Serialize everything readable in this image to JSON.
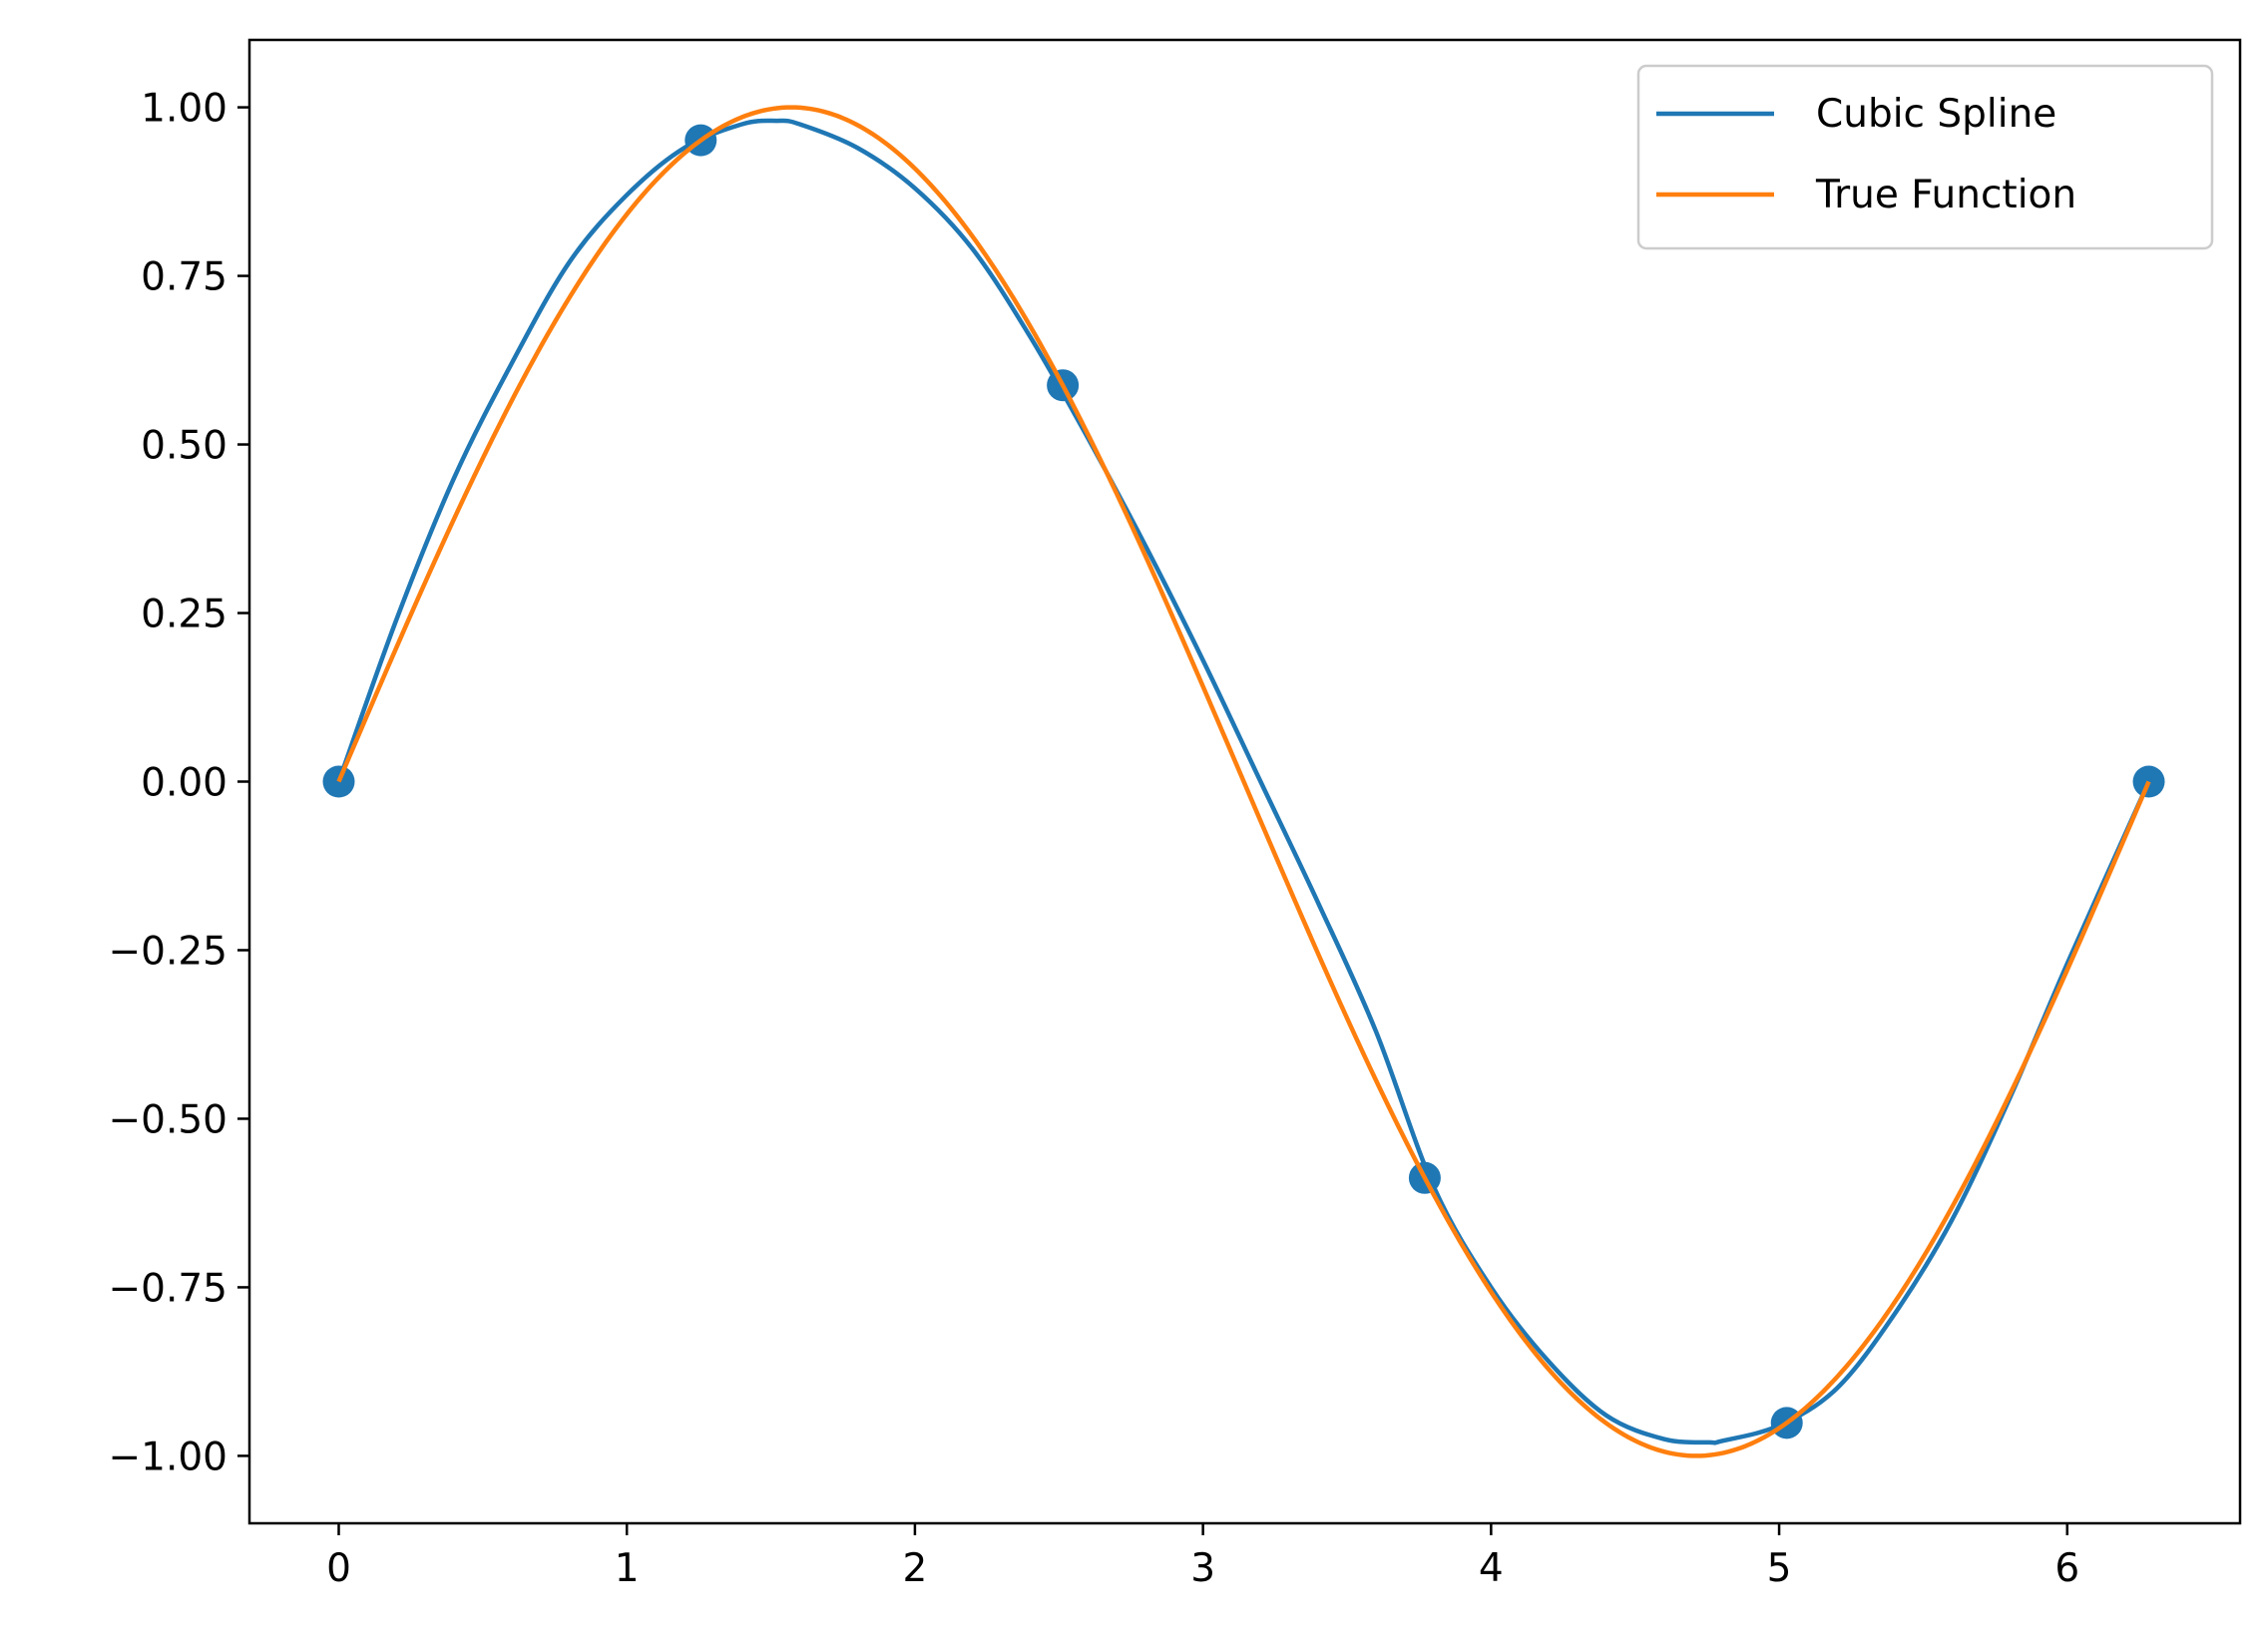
{
  "chart_data": {
    "type": "line",
    "xlim": [
      -0.31,
      6.6
    ],
    "ylim": [
      -1.1,
      1.1
    ],
    "xticks": [
      0,
      1,
      2,
      3,
      4,
      5,
      6
    ],
    "xtick_labels": [
      "0",
      "1",
      "2",
      "3",
      "4",
      "5",
      "6"
    ],
    "yticks": [
      1.0,
      0.75,
      0.5,
      0.25,
      0.0,
      -0.25,
      -0.5,
      -0.75,
      -1.0
    ],
    "ytick_labels": [
      "1.00",
      "0.75",
      "0.50",
      "0.25",
      "0.00",
      "−0.25",
      "−0.50",
      "−0.75",
      "−1.00"
    ],
    "grid": false,
    "legend_position": "top-right",
    "points": {
      "x": [
        0.0,
        1.2566,
        2.5133,
        3.7699,
        5.0265,
        6.2832
      ],
      "y": [
        0.0,
        0.9511,
        0.5878,
        -0.5878,
        -0.9511,
        0.0
      ],
      "color": "#1f77b4"
    },
    "series": [
      {
        "name": "Cubic Spline",
        "color": "#1f77b4",
        "x": [
          0.0,
          0.2,
          0.4,
          0.6,
          0.8,
          1.0,
          1.2,
          1.4,
          1.52,
          1.6,
          1.8,
          2.0,
          2.2,
          2.4,
          2.6,
          2.8,
          3.0,
          3.2,
          3.4,
          3.6,
          3.8,
          4.0,
          4.2,
          4.4,
          4.6,
          4.76,
          4.8,
          5.0,
          5.2,
          5.4,
          5.6,
          5.8,
          6.0,
          6.2832
        ],
        "y": [
          0.0,
          0.24,
          0.45,
          0.62,
          0.77,
          0.87,
          0.94,
          0.975,
          0.98,
          0.975,
          0.94,
          0.88,
          0.79,
          0.66,
          0.51,
          0.35,
          0.18,
          0.0,
          -0.18,
          -0.37,
          -0.6,
          -0.75,
          -0.86,
          -0.94,
          -0.975,
          -0.98,
          -0.978,
          -0.955,
          -0.9,
          -0.79,
          -0.65,
          -0.47,
          -0.27,
          0.0
        ]
      },
      {
        "name": "True Function",
        "color": "#ff7f0e",
        "fn": "sin",
        "x_range": [
          0.0,
          6.2832
        ]
      }
    ]
  }
}
